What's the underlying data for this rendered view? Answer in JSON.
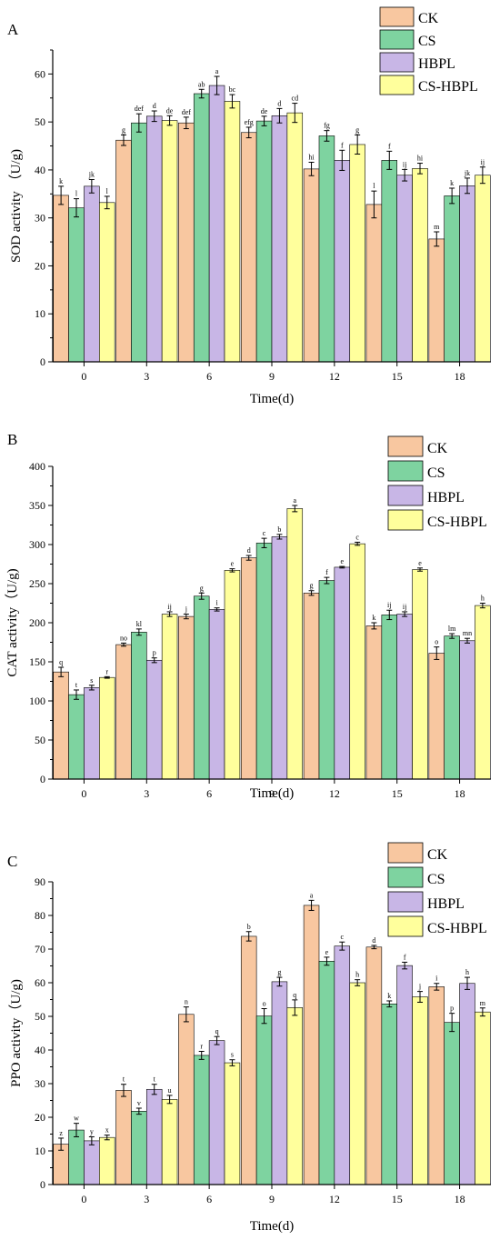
{
  "colors": {
    "CK": "#F8C7A0",
    "CS": "#7ED3A0",
    "HBPL": "#C8B6E6",
    "CS-HBPL": "#FFFF9C",
    "axis": "#000000"
  },
  "chart_data": [
    {
      "type": "bar",
      "panel_label": "A",
      "xlabel": "Time(d)",
      "ylabel": "SOD activity （U/g)",
      "ylim": [
        0,
        65
      ],
      "yticks": [
        0,
        10,
        20,
        30,
        40,
        50,
        60
      ],
      "categories": [
        "0",
        "3",
        "6",
        "9",
        "12",
        "15",
        "18"
      ],
      "legend_position": "top-right",
      "series": [
        {
          "name": "CK",
          "values": [
            34.7,
            46.2,
            49.8,
            47.8,
            40.2,
            32.8,
            25.6
          ],
          "errors": [
            1.9,
            1.1,
            1.2,
            1.1,
            1.4,
            2.8,
            1.5
          ],
          "letters": [
            "k",
            "g",
            "def",
            "efg",
            "hi",
            "l",
            "m"
          ]
        },
        {
          "name": "CS",
          "values": [
            32.1,
            49.8,
            55.9,
            50.2,
            47.1,
            42.0,
            34.6
          ],
          "errors": [
            1.9,
            1.9,
            0.9,
            1.0,
            1.1,
            1.9,
            1.6
          ],
          "letters": [
            "l",
            "def",
            "ab",
            "de",
            "fg",
            "f",
            "k"
          ]
        },
        {
          "name": "HBPL",
          "values": [
            36.6,
            51.2,
            57.6,
            51.3,
            42.0,
            38.9,
            36.7
          ],
          "errors": [
            1.4,
            1.1,
            1.9,
            1.5,
            2.1,
            1.2,
            1.6
          ],
          "letters": [
            "jk",
            "d",
            "a",
            "d",
            "f",
            "ij",
            "jk"
          ]
        },
        {
          "name": "CS-HBPL",
          "values": [
            33.2,
            50.3,
            54.3,
            51.9,
            45.3,
            40.3,
            38.9
          ],
          "errors": [
            1.3,
            1.0,
            1.4,
            2.0,
            2.0,
            1.1,
            1.7
          ],
          "letters": [
            "l",
            "de",
            "bc",
            "cd",
            "g",
            "hi",
            "ij"
          ]
        }
      ]
    },
    {
      "type": "bar",
      "panel_label": "B",
      "xlabel": "Time(d)",
      "ylabel": "CAT activity（U/g)",
      "ylim": [
        0,
        400
      ],
      "yticks": [
        0,
        50,
        100,
        150,
        200,
        250,
        300,
        350,
        400
      ],
      "categories": [
        "0",
        "3",
        "6",
        "9",
        "12",
        "15",
        "18"
      ],
      "legend_position": "top-right",
      "series": [
        {
          "name": "CK",
          "values": [
            137,
            172,
            208,
            283,
            238,
            196,
            161
          ],
          "errors": [
            6,
            2,
            3,
            3,
            3,
            4,
            8
          ],
          "letters": [
            "q",
            "no",
            "j",
            "d",
            "g",
            "k",
            "o"
          ]
        },
        {
          "name": "CS",
          "values": [
            108,
            188,
            234,
            302,
            254,
            210,
            183
          ],
          "errors": [
            6,
            4,
            4,
            6,
            4,
            6,
            3
          ],
          "letters": [
            "t",
            "kl",
            "g",
            "c",
            "f",
            "ij",
            "lm"
          ]
        },
        {
          "name": "HBPL",
          "values": [
            117,
            152,
            217,
            310,
            271,
            211,
            177
          ],
          "errors": [
            3,
            3,
            2,
            3,
            1,
            3,
            3
          ],
          "letters": [
            "s",
            "p",
            "i",
            "b",
            "e",
            "ij",
            "mn"
          ]
        },
        {
          "name": "CS-HBPL",
          "values": [
            130,
            211,
            267,
            346,
            301,
            268,
            222
          ],
          "errors": [
            1,
            3,
            2,
            4,
            2,
            2,
            3
          ],
          "letters": [
            "r",
            "ij",
            "e",
            "a",
            "c",
            "e",
            "h"
          ]
        }
      ]
    },
    {
      "type": "bar",
      "panel_label": "C",
      "xlabel": "Time(d)",
      "ylabel": "PPO activity（U/g)",
      "ylim": [
        0,
        90
      ],
      "yticks": [
        0,
        10,
        20,
        30,
        40,
        50,
        60,
        70,
        80,
        90
      ],
      "categories": [
        "0",
        "3",
        "6",
        "9",
        "12",
        "15",
        "18"
      ],
      "legend_position": "top-right",
      "series": [
        {
          "name": "CK",
          "values": [
            12.0,
            28.0,
            50.6,
            73.8,
            83.0,
            70.6,
            58.8
          ],
          "errors": [
            1.8,
            1.8,
            2.2,
            1.4,
            1.5,
            0.5,
            1.0
          ],
          "letters": [
            "z",
            "t",
            "n",
            "b",
            "a",
            "d",
            "i"
          ]
        },
        {
          "name": "CS",
          "values": [
            16.2,
            21.8,
            38.4,
            50.1,
            66.4,
            53.7,
            48.2
          ],
          "errors": [
            2.0,
            0.9,
            1.2,
            2.2,
            1.2,
            0.9,
            2.7
          ],
          "letters": [
            "w",
            "v",
            "r",
            "o",
            "e",
            "k",
            "p"
          ]
        },
        {
          "name": "HBPL",
          "values": [
            13.0,
            28.3,
            42.8,
            60.3,
            70.9,
            65.1,
            59.8
          ],
          "errors": [
            1.2,
            1.5,
            1.2,
            1.3,
            1.2,
            1.0,
            1.8
          ],
          "letters": [
            "y",
            "t",
            "q",
            "g",
            "c",
            "f",
            "h"
          ]
        },
        {
          "name": "CS-HBPL",
          "values": [
            14.0,
            25.3,
            36.2,
            52.6,
            60.0,
            55.8,
            51.3
          ],
          "errors": [
            0.7,
            1.2,
            0.9,
            2.3,
            0.9,
            1.6,
            1.2
          ],
          "letters": [
            "x",
            "u",
            "s",
            "q",
            "h",
            "j",
            "m"
          ]
        }
      ]
    }
  ]
}
